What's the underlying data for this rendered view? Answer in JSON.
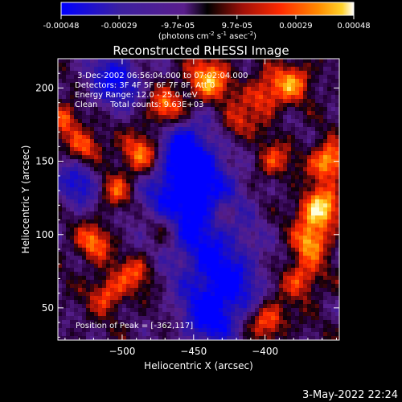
{
  "chart_data": {
    "type": "heatmap",
    "title": "Reconstructed RHESSI Image",
    "colorbar": {
      "ticks": [
        "-0.00048",
        "-0.00029",
        "-9.7e-05",
        "9.7e-05",
        "0.00029",
        "0.00048"
      ],
      "range": [
        -0.00048,
        0.00048
      ],
      "unit_prefix": "(photons cm",
      "unit_sup1": "-2",
      "unit_mid": " s",
      "unit_sup2": "-1",
      "unit_mid2": " asec",
      "unit_sup3": "-2",
      "unit_suffix": ")"
    },
    "xlabel": "Heliocentric X (arcsec)",
    "ylabel": "Heliocentric Y (arcsec)",
    "xlim": [
      -545,
      -348
    ],
    "ylim": [
      28,
      220
    ],
    "x_ticks": [
      -500,
      -450,
      -400
    ],
    "x_tick_labels": [
      "−500",
      "−450",
      "−400"
    ],
    "y_ticks": [
      50,
      100,
      150,
      200
    ],
    "y_tick_labels": [
      "50",
      "100",
      "150",
      "200"
    ],
    "info_lines": [
      " 3-Dec-2002 06:56:04.000 to 07:02:04.000",
      "Detectors: 3F 4F 5F 6F 7F 8F, Att 0",
      "Energy Range: 12.0 - 25.0 keV",
      "Clean     Total counts: 9.63E+03"
    ],
    "peak_label": "Position of Peak = [-362,117]",
    "peak_position": [
      -362,
      117
    ],
    "colors": {
      "background": "#000000",
      "axes": "#ffffff",
      "colormap": [
        "#0000ff",
        "#3c20a0",
        "#5a1e8c",
        "#000000",
        "#a01008",
        "#ff2a00",
        "#ff8c00",
        "#ffd22a",
        "#ffffff"
      ]
    }
  },
  "footer_date": "3-May-2022 22:24"
}
